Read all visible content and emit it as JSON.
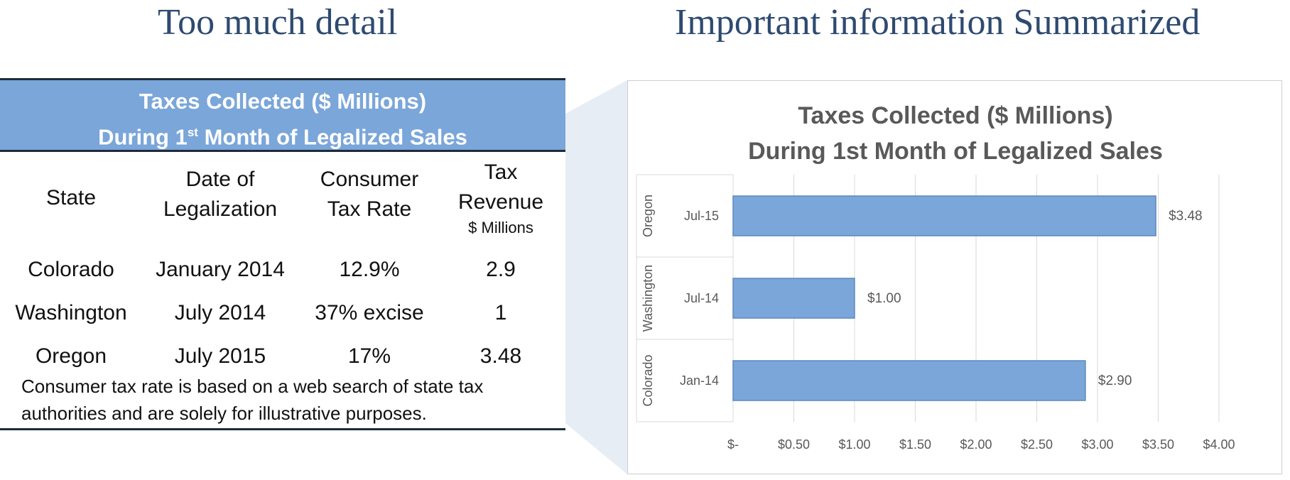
{
  "headings": {
    "left": "Too much detail",
    "right": "Important information Summarized"
  },
  "table": {
    "banner_line1": "Taxes Collected ($ Millions)",
    "banner_line2_pre": "During 1",
    "banner_line2_sup": "st",
    "banner_line2_post": " Month of Legalized Sales",
    "columns": {
      "state": "State",
      "date_line1": "Date of",
      "date_line2": "Legalization",
      "rate_line1": "Consumer",
      "rate_line2": "Tax Rate",
      "revenue_line1": "Tax",
      "revenue_line2": "Revenue",
      "revenue_unit": "$ Millions"
    },
    "rows": [
      {
        "state": "Colorado",
        "date": "January 2014",
        "rate": "12.9%",
        "revenue": "2.9"
      },
      {
        "state": "Washington",
        "date": "July 2014",
        "rate": "37% excise",
        "revenue": "1"
      },
      {
        "state": "Oregon",
        "date": "July 2015",
        "rate": "17%",
        "revenue": "3.48"
      }
    ],
    "note_line1": "Consumer tax rate is based on a web search of state tax",
    "note_line2": "authorities and are solely for illustrative purposes."
  },
  "chart_data": {
    "type": "bar",
    "orientation": "horizontal",
    "title_line1": "Taxes Collected ($ Millions)",
    "title_line2": "During 1st Month of Legalized Sales",
    "categories": [
      {
        "group": "Oregon",
        "label": "Jul-15"
      },
      {
        "group": "Washington",
        "label": "Jul-14"
      },
      {
        "group": "Colorado",
        "label": "Jan-14"
      }
    ],
    "values": [
      3.48,
      1.0,
      2.9
    ],
    "data_labels": [
      "$3.48",
      "$1.00",
      "$2.90"
    ],
    "xlim": [
      0,
      4.0
    ],
    "x_ticks": [
      0,
      0.5,
      1.0,
      1.5,
      2.0,
      2.5,
      3.0,
      3.5,
      4.0
    ],
    "x_tick_labels": [
      "$-",
      "$0.50",
      "$1.00",
      "$1.50",
      "$2.00",
      "$2.50",
      "$3.00",
      "$3.50",
      "$4.00"
    ],
    "grid": true,
    "bar_color": "#7aa6d9",
    "bar_edge_color": "#5d88bd"
  }
}
